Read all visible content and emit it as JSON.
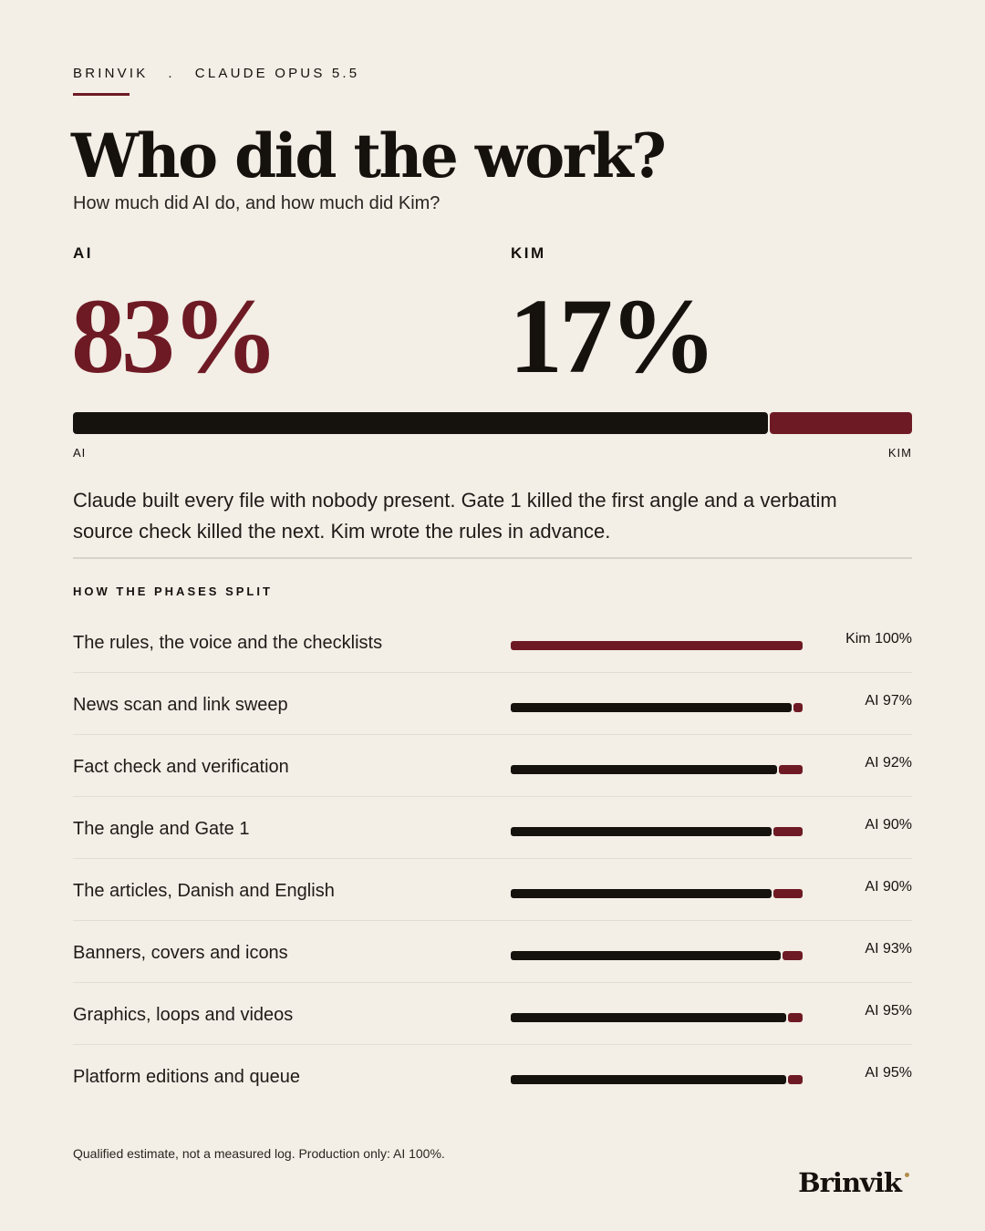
{
  "header": {
    "kicker_left": "BRINVIK",
    "kicker_sep": ".",
    "kicker_right": "CLAUDE OPUS 5.5"
  },
  "colors": {
    "ai": "#15120e",
    "kim": "#6e1a24",
    "accent": "#6e1a24",
    "background": "#f3eee6",
    "brand_dot": "#b08d4a"
  },
  "chart_data": [
    {
      "type": "bar",
      "orientation": "horizontal-stacked",
      "title": "Who did the work?",
      "subtitle": "How much did AI do, and how much did Kim?",
      "series": [
        {
          "name": "AI",
          "values": [
            83
          ],
          "display": "83%"
        },
        {
          "name": "KIM",
          "values": [
            17
          ],
          "display": "17%"
        }
      ],
      "bar_left_label": "AI",
      "bar_right_label": "KIM",
      "ylim": [
        0,
        100
      ]
    },
    {
      "type": "bar",
      "orientation": "horizontal-stacked",
      "title": "HOW THE PHASES SPLIT",
      "categories": [
        "The rules, the voice and the checklists",
        "News scan and link sweep",
        "Fact check and verification",
        "The angle and Gate 1",
        "The articles, Danish and English",
        "Banners, covers and icons",
        "Graphics, loops and videos",
        "Platform editions and queue"
      ],
      "series": [
        {
          "name": "AI",
          "values": [
            0,
            97,
            92,
            90,
            90,
            93,
            95,
            95
          ]
        },
        {
          "name": "Kim",
          "values": [
            100,
            3,
            8,
            10,
            10,
            7,
            5,
            5
          ]
        }
      ],
      "value_labels": [
        "Kim 100%",
        "AI 97%",
        "AI 92%",
        "AI 90%",
        "AI 90%",
        "AI 93%",
        "AI 95%",
        "AI 95%"
      ],
      "ylim": [
        0,
        100
      ]
    }
  ],
  "description": "Claude built every file with nobody present. Gate 1 killed the first angle and a verbatim source check killed the next. Kim wrote the rules in advance.",
  "footnote": "Qualified estimate, not a measured log. Production only: AI 100%.",
  "brand": "Brinvik"
}
